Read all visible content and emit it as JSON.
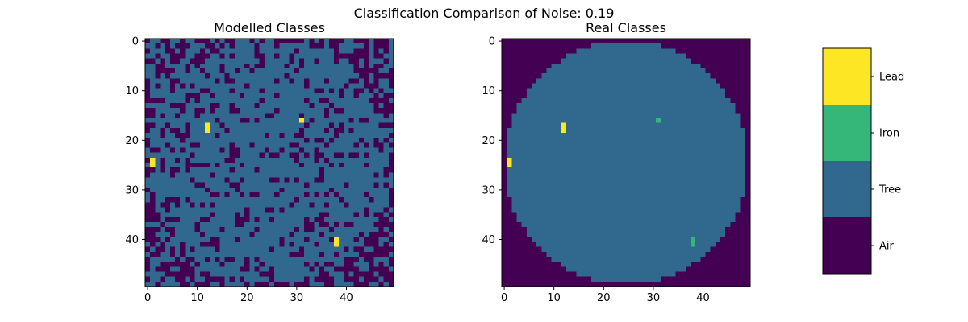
{
  "figure": {
    "suptitle": "Classification Comparison of Noise: 0.19"
  },
  "colors": {
    "Air": "#440154",
    "Tree": "#31688e",
    "Iron": "#35b779",
    "Lead": "#fde725",
    "axis": "#000000",
    "background": "#ffffff"
  },
  "chart_data": [
    {
      "type": "heatmap",
      "title": "Modelled Classes",
      "xlabel": "",
      "ylabel": "",
      "grid_size": [
        50,
        50
      ],
      "xlim": [
        -0.5,
        49.5
      ],
      "ylim": [
        49.5,
        -0.5
      ],
      "xticks": [
        0,
        10,
        20,
        30,
        40
      ],
      "yticks": [
        0,
        10,
        20,
        30,
        40
      ],
      "classes": [
        "Air",
        "Tree",
        "Iron",
        "Lead"
      ],
      "background_class": "Tree",
      "noise_fraction": 0.19,
      "noisy_class": "Air",
      "outer_region_class": "Air",
      "cells": [
        {
          "row": 16,
          "col": 31,
          "class": "Lead"
        },
        {
          "row": 17,
          "col": 12,
          "class": "Lead"
        },
        {
          "row": 18,
          "col": 12,
          "class": "Lead"
        },
        {
          "row": 24,
          "col": 1,
          "class": "Lead"
        },
        {
          "row": 25,
          "col": 1,
          "class": "Lead"
        },
        {
          "row": 40,
          "col": 38,
          "class": "Lead"
        },
        {
          "row": 41,
          "col": 38,
          "class": "Lead"
        }
      ]
    },
    {
      "type": "heatmap",
      "title": "Real Classes",
      "xlabel": "",
      "ylabel": "",
      "grid_size": [
        50,
        50
      ],
      "xlim": [
        -0.5,
        49.5
      ],
      "ylim": [
        49.5,
        -0.5
      ],
      "xticks": [
        0,
        10,
        20,
        30,
        40
      ],
      "yticks": [
        0,
        10,
        20,
        30,
        40
      ],
      "classes": [
        "Air",
        "Tree",
        "Iron",
        "Lead"
      ],
      "inside_circle_class": "Tree",
      "outside_circle_class": "Air",
      "circle_center": [
        24.5,
        24.5
      ],
      "circle_radius": 24.5,
      "cells": [
        {
          "row": 16,
          "col": 31,
          "class": "Iron"
        },
        {
          "row": 17,
          "col": 12,
          "class": "Lead"
        },
        {
          "row": 18,
          "col": 12,
          "class": "Lead"
        },
        {
          "row": 24,
          "col": 1,
          "class": "Lead"
        },
        {
          "row": 25,
          "col": 1,
          "class": "Lead"
        },
        {
          "row": 40,
          "col": 38,
          "class": "Iron"
        },
        {
          "row": 41,
          "col": 38,
          "class": "Iron"
        }
      ]
    }
  ],
  "colorbar": {
    "ticks": [
      "Air",
      "Tree",
      "Iron",
      "Lead"
    ]
  }
}
